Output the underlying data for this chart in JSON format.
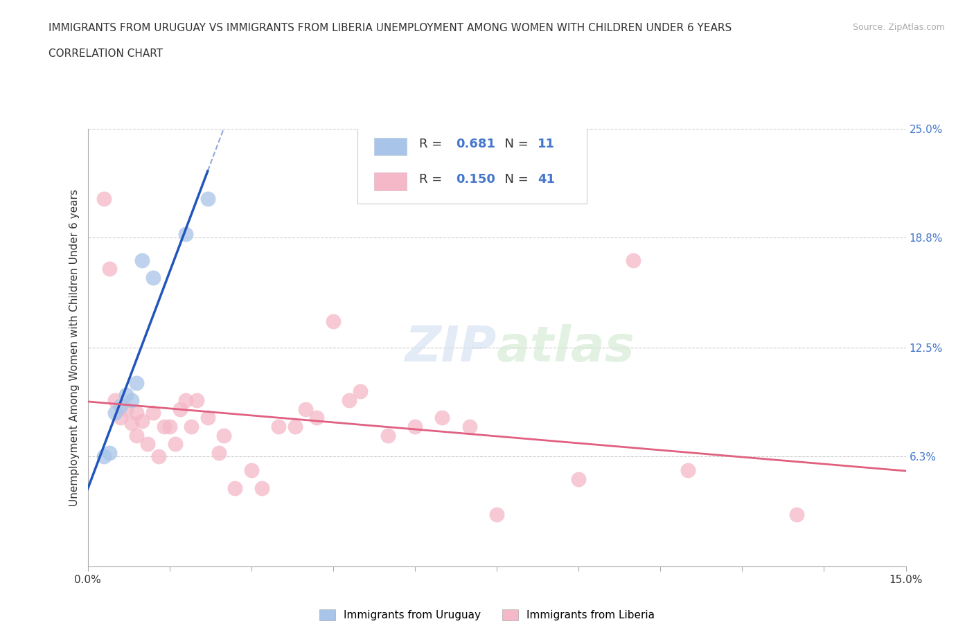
{
  "title_line1": "IMMIGRANTS FROM URUGUAY VS IMMIGRANTS FROM LIBERIA UNEMPLOYMENT AMONG WOMEN WITH CHILDREN UNDER 6 YEARS",
  "title_line2": "CORRELATION CHART",
  "source_text": "Source: ZipAtlas.com",
  "ylabel": "Unemployment Among Women with Children Under 6 years",
  "xlim": [
    0.0,
    0.15
  ],
  "ylim": [
    0.0,
    0.25
  ],
  "ytick_labels": [
    "6.3%",
    "12.5%",
    "18.8%",
    "25.0%"
  ],
  "ytick_positions": [
    0.063,
    0.125,
    0.188,
    0.25
  ],
  "xtick_positions": [
    0.0,
    0.015,
    0.03,
    0.045,
    0.06,
    0.075,
    0.09,
    0.105,
    0.12,
    0.135,
    0.15
  ],
  "xtick_labels": [
    "0.0%",
    "",
    "",
    "",
    "",
    "",
    "",
    "",
    "",
    "",
    "15.0%"
  ],
  "legend_uruguay_R": "0.681",
  "legend_uruguay_N": "11",
  "legend_liberia_R": "0.150",
  "legend_liberia_N": "41",
  "color_uruguay": "#a8c4e8",
  "color_liberia": "#f4b8c8",
  "color_trendline_uruguay": "#2255bb",
  "color_trendline_liberia": "#e06080",
  "background_color": "#ffffff",
  "grid_color": "#cccccc",
  "uruguay_x": [
    0.003,
    0.004,
    0.005,
    0.006,
    0.007,
    0.008,
    0.009,
    0.01,
    0.012,
    0.018,
    0.022
  ],
  "uruguay_y": [
    0.063,
    0.065,
    0.088,
    0.092,
    0.098,
    0.095,
    0.105,
    0.175,
    0.165,
    0.19,
    0.21
  ],
  "liberia_x": [
    0.003,
    0.004,
    0.005,
    0.006,
    0.007,
    0.008,
    0.009,
    0.009,
    0.01,
    0.011,
    0.012,
    0.013,
    0.014,
    0.015,
    0.016,
    0.017,
    0.018,
    0.019,
    0.02,
    0.022,
    0.024,
    0.025,
    0.027,
    0.03,
    0.032,
    0.035,
    0.038,
    0.04,
    0.042,
    0.045,
    0.048,
    0.05,
    0.055,
    0.06,
    0.065,
    0.07,
    0.075,
    0.09,
    0.1,
    0.11,
    0.13
  ],
  "liberia_y": [
    0.21,
    0.17,
    0.095,
    0.085,
    0.09,
    0.082,
    0.075,
    0.088,
    0.083,
    0.07,
    0.088,
    0.063,
    0.08,
    0.08,
    0.07,
    0.09,
    0.095,
    0.08,
    0.095,
    0.085,
    0.065,
    0.075,
    0.045,
    0.055,
    0.045,
    0.08,
    0.08,
    0.09,
    0.085,
    0.14,
    0.095,
    0.1,
    0.075,
    0.08,
    0.085,
    0.08,
    0.03,
    0.05,
    0.175,
    0.055,
    0.03
  ],
  "title_fontsize": 11,
  "subtitle_fontsize": 11,
  "axis_label_fontsize": 11,
  "tick_fontsize": 11,
  "legend_fontsize": 13,
  "source_fontsize": 9
}
